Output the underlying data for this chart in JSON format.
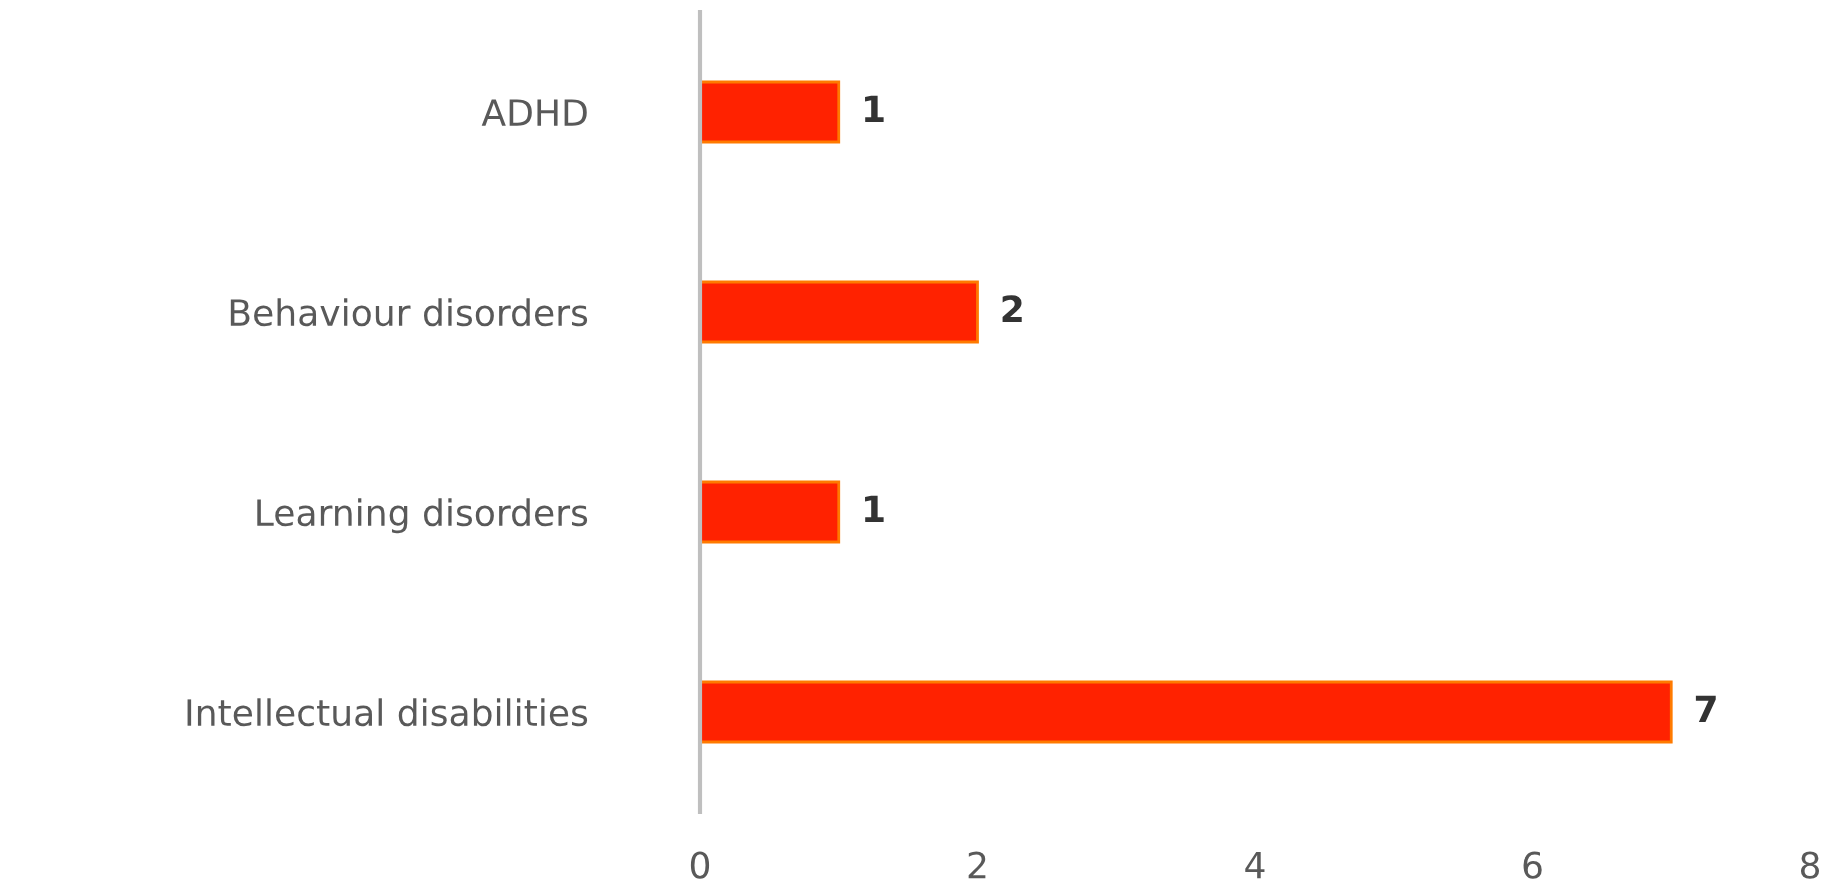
{
  "chart_data": {
    "type": "bar",
    "orientation": "horizontal",
    "categories": [
      "ADHD",
      "Behaviour disorders",
      "Learning disorders",
      "Intellectual disabilities"
    ],
    "values": [
      1,
      2,
      1,
      7
    ],
    "color": "#ff2200",
    "xlim": [
      0,
      8
    ],
    "xticks": [
      0,
      2,
      4,
      6,
      8
    ],
    "data_labels": true,
    "grid": false,
    "legend": false
  }
}
